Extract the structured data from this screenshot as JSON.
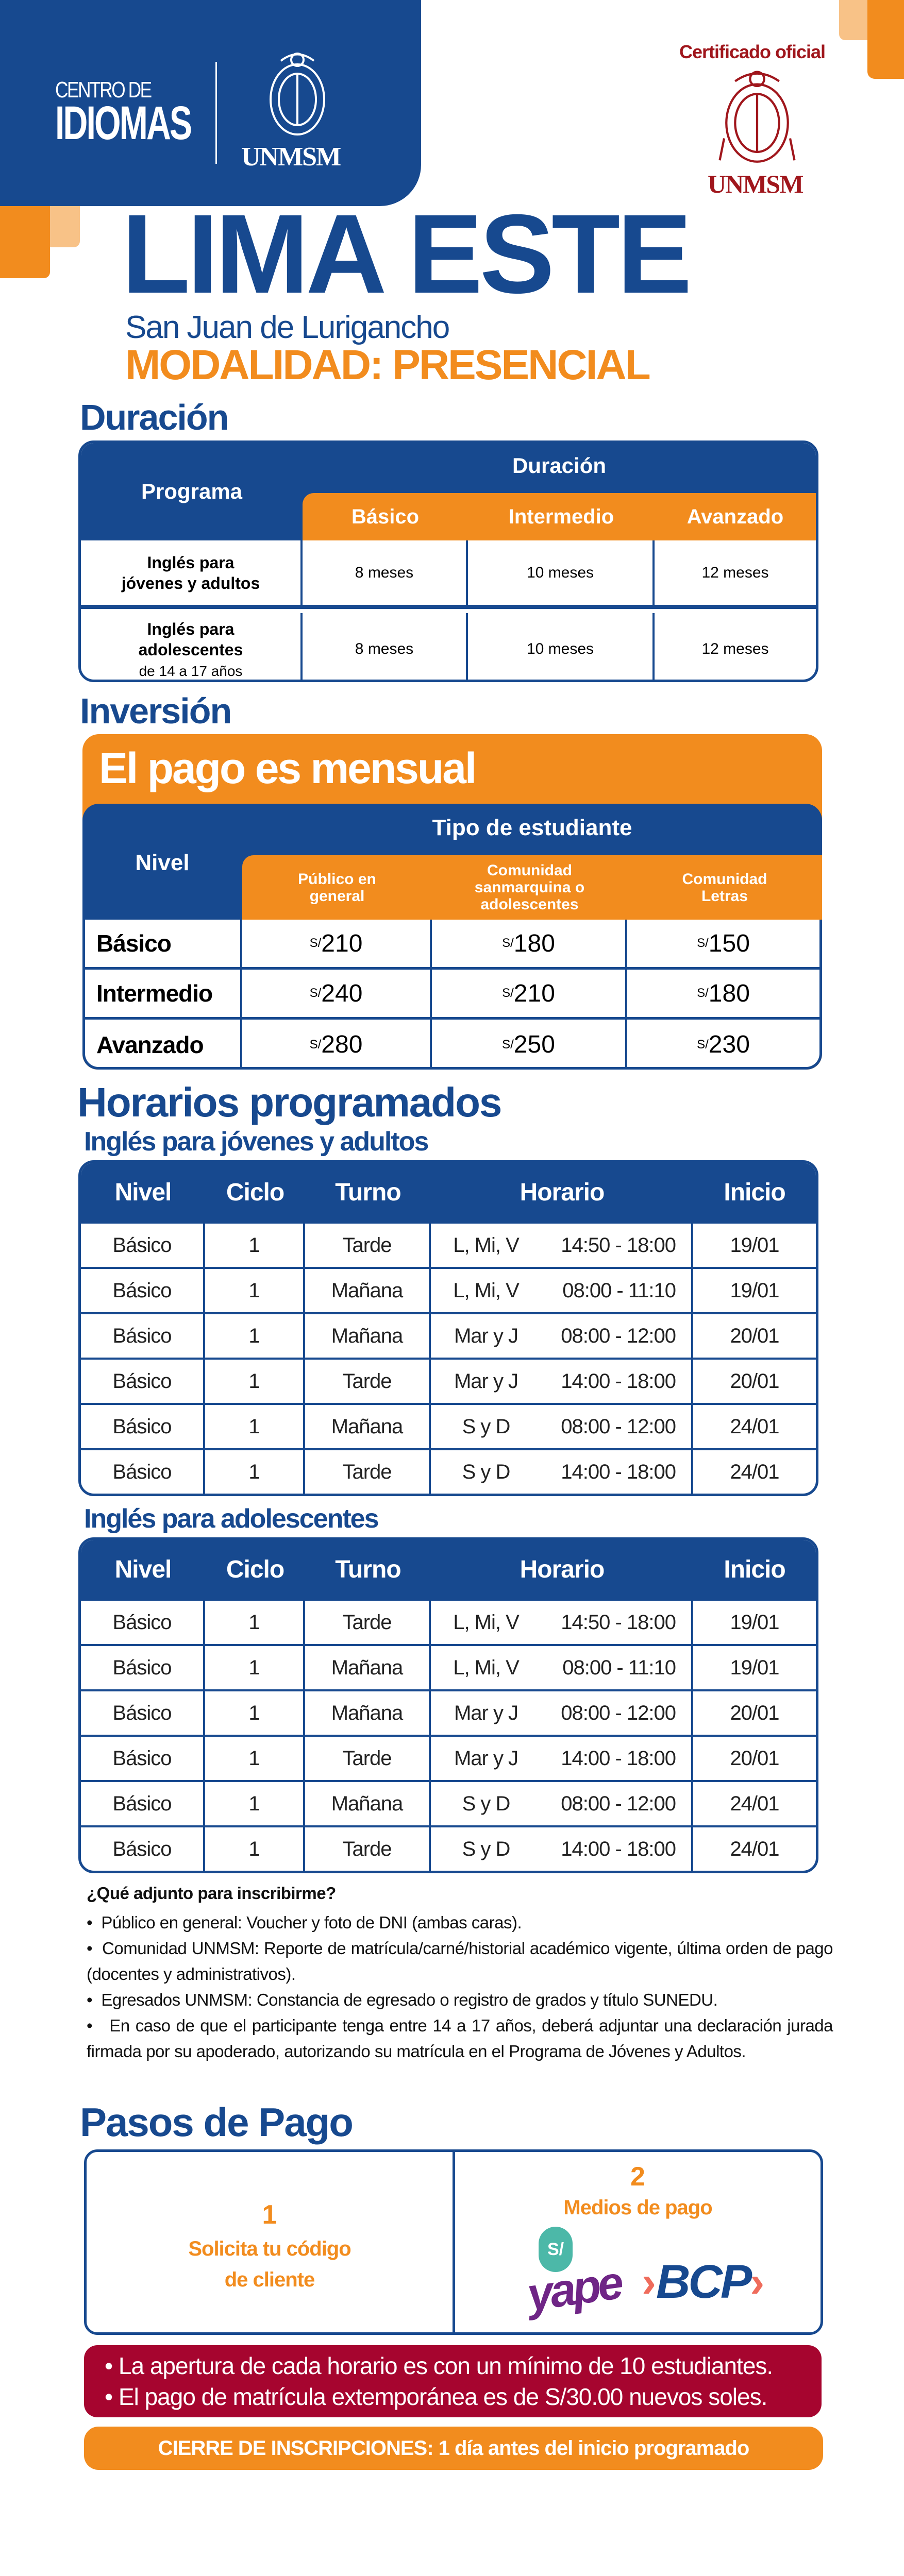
{
  "header": {
    "centro": "CENTRO DE",
    "idiomas": "IDIOMAS",
    "unmsm": "UNMSM",
    "cert": "Certificado oficial",
    "unmsm_red": "UNMSM"
  },
  "title": {
    "main": "LIMA ESTE",
    "district": "San Juan de Lurigancho",
    "modality": "MODALIDAD: PRESENCIAL"
  },
  "duration": {
    "heading": "Duración",
    "col_program": "Programa",
    "col_duration": "Duración",
    "levels": [
      "Básico",
      "Intermedio",
      "Avanzado"
    ],
    "rows": [
      {
        "program": "Inglés para jóvenes y adultos",
        "note": "",
        "values": [
          "8 meses",
          "10 meses",
          "12 meses"
        ]
      },
      {
        "program": "Inglés para adolescentes",
        "note": "de 14 a 17 años",
        "values": [
          "8 meses",
          "10 meses",
          "12 meses"
        ]
      }
    ]
  },
  "investment": {
    "heading": "Inversión",
    "banner": "El pago es mensual",
    "col_level": "Nivel",
    "col_type": "Tipo de estudiante",
    "types": [
      "Público en general",
      "Comunidad sanmarquina o adolescentes",
      "Comunidad Letras"
    ],
    "currency": "S/",
    "rows": [
      {
        "level": "Básico",
        "prices": [
          "210",
          "180",
          "150"
        ]
      },
      {
        "level": "Intermedio",
        "prices": [
          "240",
          "210",
          "180"
        ]
      },
      {
        "level": "Avanzado",
        "prices": [
          "280",
          "250",
          "230"
        ]
      }
    ]
  },
  "schedules": {
    "heading": "Horarios programados",
    "columns": [
      "Nivel",
      "Ciclo",
      "Turno",
      "Horario",
      "Inicio"
    ],
    "groups": [
      {
        "title": "Inglés para jóvenes y adultos",
        "rows": [
          [
            "Básico",
            "1",
            "Tarde",
            "L, Mi, V",
            "14:50 - 18:00",
            "19/01"
          ],
          [
            "Básico",
            "1",
            "Mañana",
            "L, Mi, V",
            "08:00 - 11:10",
            "19/01"
          ],
          [
            "Básico",
            "1",
            "Mañana",
            "Mar y J",
            "08:00 - 12:00",
            "20/01"
          ],
          [
            "Básico",
            "1",
            "Tarde",
            "Mar y J",
            "14:00 - 18:00",
            "20/01"
          ],
          [
            "Básico",
            "1",
            "Mañana",
            "S y D",
            "08:00 - 12:00",
            "24/01"
          ],
          [
            "Básico",
            "1",
            "Tarde",
            "S y D",
            "14:00 - 18:00",
            "24/01"
          ]
        ]
      },
      {
        "title": "Inglés para adolescentes",
        "rows": [
          [
            "Básico",
            "1",
            "Tarde",
            "L, Mi, V",
            "14:50 - 18:00",
            "19/01"
          ],
          [
            "Básico",
            "1",
            "Mañana",
            "L, Mi, V",
            "08:00 - 11:10",
            "19/01"
          ],
          [
            "Básico",
            "1",
            "Mañana",
            "Mar y J",
            "08:00 - 12:00",
            "20/01"
          ],
          [
            "Básico",
            "1",
            "Tarde",
            "Mar y J",
            "14:00 - 18:00",
            "20/01"
          ],
          [
            "Básico",
            "1",
            "Mañana",
            "S y D",
            "08:00 - 12:00",
            "24/01"
          ],
          [
            "Básico",
            "1",
            "Tarde",
            "S y D",
            "14:00 - 18:00",
            "24/01"
          ]
        ]
      }
    ]
  },
  "requirements": {
    "title": "¿Qué adjunto para inscribirme?",
    "items": [
      "Público en general: Voucher y foto de DNI (ambas caras).",
      "Comunidad UNMSM: Reporte de matrícula/carné/historial académico vigente, última orden de pago (docentes y administrativos).",
      "Egresados UNMSM: Constancia de egresado o registro de grados y título SUNEDU.",
      "En caso de que el participante tenga entre 14 a 17 años, deberá adjuntar una declaración jurada firmada por su apoderado, autorizando su matrícula en el Programa de Jóvenes y Adultos."
    ]
  },
  "payment": {
    "heading": "Pasos de Pago",
    "step1": {
      "num": "1",
      "line1": "Solicita tu código",
      "line2": "de cliente"
    },
    "step2": {
      "num": "2",
      "label": "Medios de pago",
      "yape_symbol": "S/",
      "yape": "yape",
      "bcp": "BCP"
    }
  },
  "notices": [
    "La apertura de cada horario es con un mínimo de 10 estudiantes.",
    "El pago de matrícula extemporánea es de S/30.00 nuevos soles."
  ],
  "closing": "CIERRE DE INSCRIPCIONES: 1 día antes del inicio programado",
  "colors": {
    "blue": "#17498f",
    "orange": "#f28c1e",
    "light_orange": "#f8c287",
    "red": "#a6052f"
  }
}
